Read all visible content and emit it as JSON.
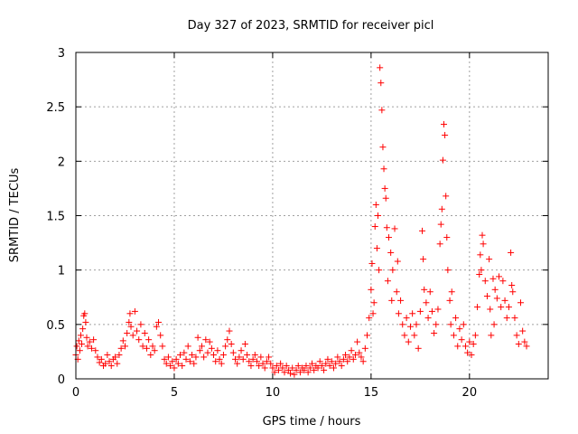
{
  "chart_data": {
    "type": "scatter",
    "title": "Day 327 of 2023, SRMTID for receiver picl",
    "xlabel": "GPS time / hours",
    "ylabel": "SRMTID / TECUs",
    "xlim": [
      0,
      24
    ],
    "ylim": [
      0,
      3
    ],
    "xticks": [
      0,
      5,
      10,
      15,
      20
    ],
    "yticks": [
      0,
      0.5,
      1,
      1.5,
      2,
      2.5,
      3
    ],
    "xtick_labels": [
      "0",
      "5",
      "10",
      "15",
      "20"
    ],
    "ytick_labels": [
      "0",
      "0.5",
      "1",
      "1.5",
      "2",
      "2.5",
      "3"
    ],
    "grid": true,
    "marker": "+",
    "color": "#ff0000",
    "series": [
      {
        "name": "SRMTID",
        "points": [
          [
            0.0,
            0.22
          ],
          [
            0.05,
            0.3
          ],
          [
            0.1,
            0.18
          ],
          [
            0.15,
            0.35
          ],
          [
            0.2,
            0.26
          ],
          [
            0.25,
            0.4
          ],
          [
            0.3,
            0.32
          ],
          [
            0.35,
            0.46
          ],
          [
            0.4,
            0.58
          ],
          [
            0.45,
            0.6
          ],
          [
            0.5,
            0.52
          ],
          [
            0.55,
            0.38
          ],
          [
            0.6,
            0.3
          ],
          [
            0.7,
            0.34
          ],
          [
            0.8,
            0.28
          ],
          [
            0.9,
            0.36
          ],
          [
            1.0,
            0.26
          ],
          [
            1.1,
            0.2
          ],
          [
            1.2,
            0.15
          ],
          [
            1.3,
            0.18
          ],
          [
            1.4,
            0.12
          ],
          [
            1.5,
            0.14
          ],
          [
            1.6,
            0.22
          ],
          [
            1.7,
            0.16
          ],
          [
            1.8,
            0.12
          ],
          [
            1.9,
            0.18
          ],
          [
            2.0,
            0.2
          ],
          [
            2.1,
            0.14
          ],
          [
            2.2,
            0.22
          ],
          [
            2.3,
            0.28
          ],
          [
            2.4,
            0.35
          ],
          [
            2.5,
            0.3
          ],
          [
            2.6,
            0.42
          ],
          [
            2.7,
            0.52
          ],
          [
            2.75,
            0.6
          ],
          [
            2.8,
            0.48
          ],
          [
            2.9,
            0.4
          ],
          [
            3.0,
            0.62
          ],
          [
            3.1,
            0.44
          ],
          [
            3.2,
            0.36
          ],
          [
            3.3,
            0.5
          ],
          [
            3.4,
            0.3
          ],
          [
            3.5,
            0.42
          ],
          [
            3.6,
            0.28
          ],
          [
            3.7,
            0.36
          ],
          [
            3.8,
            0.22
          ],
          [
            3.9,
            0.3
          ],
          [
            4.0,
            0.26
          ],
          [
            4.1,
            0.48
          ],
          [
            4.2,
            0.52
          ],
          [
            4.3,
            0.4
          ],
          [
            4.4,
            0.3
          ],
          [
            4.5,
            0.18
          ],
          [
            4.6,
            0.14
          ],
          [
            4.7,
            0.2
          ],
          [
            4.8,
            0.12
          ],
          [
            4.9,
            0.16
          ],
          [
            5.0,
            0.1
          ],
          [
            5.1,
            0.18
          ],
          [
            5.2,
            0.14
          ],
          [
            5.3,
            0.22
          ],
          [
            5.4,
            0.12
          ],
          [
            5.5,
            0.24
          ],
          [
            5.6,
            0.18
          ],
          [
            5.7,
            0.3
          ],
          [
            5.8,
            0.16
          ],
          [
            5.9,
            0.22
          ],
          [
            6.0,
            0.14
          ],
          [
            6.1,
            0.2
          ],
          [
            6.2,
            0.38
          ],
          [
            6.3,
            0.26
          ],
          [
            6.4,
            0.3
          ],
          [
            6.5,
            0.2
          ],
          [
            6.6,
            0.36
          ],
          [
            6.7,
            0.24
          ],
          [
            6.8,
            0.34
          ],
          [
            6.9,
            0.28
          ],
          [
            7.0,
            0.22
          ],
          [
            7.1,
            0.16
          ],
          [
            7.2,
            0.26
          ],
          [
            7.3,
            0.18
          ],
          [
            7.4,
            0.14
          ],
          [
            7.5,
            0.22
          ],
          [
            7.6,
            0.3
          ],
          [
            7.7,
            0.36
          ],
          [
            7.8,
            0.44
          ],
          [
            7.9,
            0.32
          ],
          [
            8.0,
            0.24
          ],
          [
            8.1,
            0.18
          ],
          [
            8.2,
            0.14
          ],
          [
            8.3,
            0.2
          ],
          [
            8.4,
            0.26
          ],
          [
            8.5,
            0.18
          ],
          [
            8.6,
            0.32
          ],
          [
            8.7,
            0.22
          ],
          [
            8.8,
            0.16
          ],
          [
            8.9,
            0.12
          ],
          [
            9.0,
            0.18
          ],
          [
            9.1,
            0.22
          ],
          [
            9.2,
            0.16
          ],
          [
            9.3,
            0.12
          ],
          [
            9.4,
            0.2
          ],
          [
            9.5,
            0.14
          ],
          [
            9.6,
            0.1
          ],
          [
            9.7,
            0.16
          ],
          [
            9.8,
            0.2
          ],
          [
            9.9,
            0.14
          ],
          [
            10.0,
            0.1
          ],
          [
            10.1,
            0.06
          ],
          [
            10.2,
            0.12
          ],
          [
            10.3,
            0.08
          ],
          [
            10.4,
            0.14
          ],
          [
            10.5,
            0.1
          ],
          [
            10.6,
            0.06
          ],
          [
            10.7,
            0.12
          ],
          [
            10.8,
            0.08
          ],
          [
            10.9,
            0.05
          ],
          [
            11.0,
            0.1
          ],
          [
            11.1,
            0.04
          ],
          [
            11.2,
            0.08
          ],
          [
            11.3,
            0.12
          ],
          [
            11.4,
            0.06
          ],
          [
            11.5,
            0.1
          ],
          [
            11.6,
            0.08
          ],
          [
            11.7,
            0.12
          ],
          [
            11.8,
            0.06
          ],
          [
            11.9,
            0.1
          ],
          [
            12.0,
            0.14
          ],
          [
            12.1,
            0.08
          ],
          [
            12.2,
            0.12
          ],
          [
            12.3,
            0.1
          ],
          [
            12.4,
            0.16
          ],
          [
            12.5,
            0.12
          ],
          [
            12.6,
            0.08
          ],
          [
            12.7,
            0.14
          ],
          [
            12.8,
            0.18
          ],
          [
            12.9,
            0.12
          ],
          [
            13.0,
            0.16
          ],
          [
            13.1,
            0.1
          ],
          [
            13.2,
            0.14
          ],
          [
            13.3,
            0.2
          ],
          [
            13.4,
            0.16
          ],
          [
            13.5,
            0.12
          ],
          [
            13.6,
            0.18
          ],
          [
            13.7,
            0.22
          ],
          [
            13.8,
            0.16
          ],
          [
            13.9,
            0.2
          ],
          [
            14.0,
            0.26
          ],
          [
            14.1,
            0.18
          ],
          [
            14.2,
            0.22
          ],
          [
            14.3,
            0.34
          ],
          [
            14.4,
            0.24
          ],
          [
            14.5,
            0.2
          ],
          [
            14.6,
            0.16
          ],
          [
            14.7,
            0.28
          ],
          [
            14.8,
            0.4
          ],
          [
            14.9,
            0.56
          ],
          [
            15.0,
            0.82
          ],
          [
            15.05,
            1.06
          ],
          [
            15.1,
            0.6
          ],
          [
            15.15,
            0.7
          ],
          [
            15.2,
            1.4
          ],
          [
            15.25,
            1.6
          ],
          [
            15.3,
            1.2
          ],
          [
            15.35,
            1.5
          ],
          [
            15.4,
            1.0
          ],
          [
            15.45,
            2.86
          ],
          [
            15.5,
            2.72
          ],
          [
            15.55,
            2.47
          ],
          [
            15.6,
            2.13
          ],
          [
            15.65,
            1.93
          ],
          [
            15.7,
            1.75
          ],
          [
            15.75,
            1.66
          ],
          [
            15.8,
            1.39
          ],
          [
            15.85,
            0.9
          ],
          [
            15.9,
            1.3
          ],
          [
            16.0,
            1.16
          ],
          [
            16.05,
            0.72
          ],
          [
            16.1,
            1.0
          ],
          [
            16.2,
            1.38
          ],
          [
            16.3,
            0.8
          ],
          [
            16.35,
            1.08
          ],
          [
            16.4,
            0.6
          ],
          [
            16.5,
            0.72
          ],
          [
            16.6,
            0.5
          ],
          [
            16.7,
            0.4
          ],
          [
            16.8,
            0.56
          ],
          [
            16.9,
            0.34
          ],
          [
            17.0,
            0.48
          ],
          [
            17.1,
            0.6
          ],
          [
            17.2,
            0.4
          ],
          [
            17.3,
            0.5
          ],
          [
            17.4,
            0.28
          ],
          [
            17.5,
            0.62
          ],
          [
            17.6,
            1.36
          ],
          [
            17.65,
            1.1
          ],
          [
            17.7,
            0.82
          ],
          [
            17.8,
            0.7
          ],
          [
            17.9,
            0.56
          ],
          [
            18.0,
            0.8
          ],
          [
            18.1,
            0.62
          ],
          [
            18.2,
            0.42
          ],
          [
            18.3,
            0.5
          ],
          [
            18.4,
            0.64
          ],
          [
            18.5,
            1.24
          ],
          [
            18.55,
            1.42
          ],
          [
            18.6,
            1.56
          ],
          [
            18.65,
            2.01
          ],
          [
            18.7,
            2.34
          ],
          [
            18.75,
            2.24
          ],
          [
            18.8,
            1.68
          ],
          [
            18.85,
            1.3
          ],
          [
            18.9,
            1.0
          ],
          [
            19.0,
            0.72
          ],
          [
            19.05,
            0.5
          ],
          [
            19.1,
            0.8
          ],
          [
            19.2,
            0.4
          ],
          [
            19.3,
            0.56
          ],
          [
            19.4,
            0.3
          ],
          [
            19.5,
            0.46
          ],
          [
            19.6,
            0.36
          ],
          [
            19.7,
            0.5
          ],
          [
            19.8,
            0.3
          ],
          [
            19.9,
            0.24
          ],
          [
            20.0,
            0.34
          ],
          [
            20.1,
            0.22
          ],
          [
            20.2,
            0.32
          ],
          [
            20.3,
            0.4
          ],
          [
            20.4,
            0.66
          ],
          [
            20.5,
            0.96
          ],
          [
            20.55,
            1.14
          ],
          [
            20.6,
            1.0
          ],
          [
            20.65,
            1.32
          ],
          [
            20.7,
            1.24
          ],
          [
            20.8,
            0.9
          ],
          [
            20.9,
            0.76
          ],
          [
            21.0,
            1.1
          ],
          [
            21.05,
            0.64
          ],
          [
            21.1,
            0.4
          ],
          [
            21.2,
            0.92
          ],
          [
            21.25,
            0.5
          ],
          [
            21.3,
            0.82
          ],
          [
            21.4,
            0.74
          ],
          [
            21.5,
            0.94
          ],
          [
            21.6,
            0.66
          ],
          [
            21.7,
            0.9
          ],
          [
            21.8,
            0.72
          ],
          [
            21.9,
            0.56
          ],
          [
            22.0,
            0.66
          ],
          [
            22.1,
            1.16
          ],
          [
            22.15,
            0.86
          ],
          [
            22.2,
            0.8
          ],
          [
            22.3,
            0.56
          ],
          [
            22.4,
            0.4
          ],
          [
            22.5,
            0.32
          ],
          [
            22.6,
            0.7
          ],
          [
            22.7,
            0.44
          ],
          [
            22.8,
            0.34
          ],
          [
            22.9,
            0.3
          ]
        ]
      }
    ]
  }
}
